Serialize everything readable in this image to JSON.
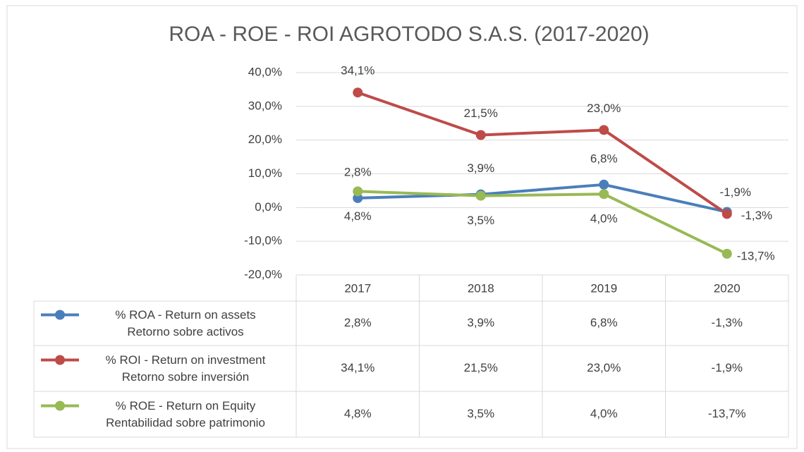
{
  "chart_data": {
    "type": "line",
    "title": "ROA - ROE - ROI AGROTODO S.A.S. (2017-2020)",
    "categories": [
      "2017",
      "2018",
      "2019",
      "2020"
    ],
    "series": [
      {
        "name": "% ROA - Return on assets\nRetorno sobre activos",
        "color": "#4a7ebb",
        "values": [
          2.8,
          3.9,
          6.8,
          -1.3
        ],
        "value_labels": [
          "2,8%",
          "3,9%",
          "6,8%",
          "-1,3%"
        ]
      },
      {
        "name": "% ROI - Return on investment\nRetorno sobre inversión",
        "color": "#be4b48",
        "values": [
          34.1,
          21.5,
          23.0,
          -1.9
        ],
        "value_labels": [
          "34,1%",
          "21,5%",
          "23,0%",
          "-1,9%"
        ]
      },
      {
        "name": "% ROE - Return on Equity\nRentabilidad sobre patrimonio",
        "color": "#98b954",
        "values": [
          4.8,
          3.5,
          4.0,
          -13.7
        ],
        "value_labels": [
          "4,8%",
          "3,5%",
          "4,0%",
          "-13,7%"
        ]
      }
    ],
    "ylim": [
      -20,
      40
    ],
    "yticks": [
      {
        "value": -20,
        "label": "-20,0%"
      },
      {
        "value": -10,
        "label": "-10,0%"
      },
      {
        "value": 0,
        "label": "0,0%"
      },
      {
        "value": 10,
        "label": "10,0%"
      },
      {
        "value": 20,
        "label": "20,0%"
      },
      {
        "value": 30,
        "label": "30,0%"
      },
      {
        "value": 40,
        "label": "40,0%"
      }
    ],
    "grid": true
  }
}
